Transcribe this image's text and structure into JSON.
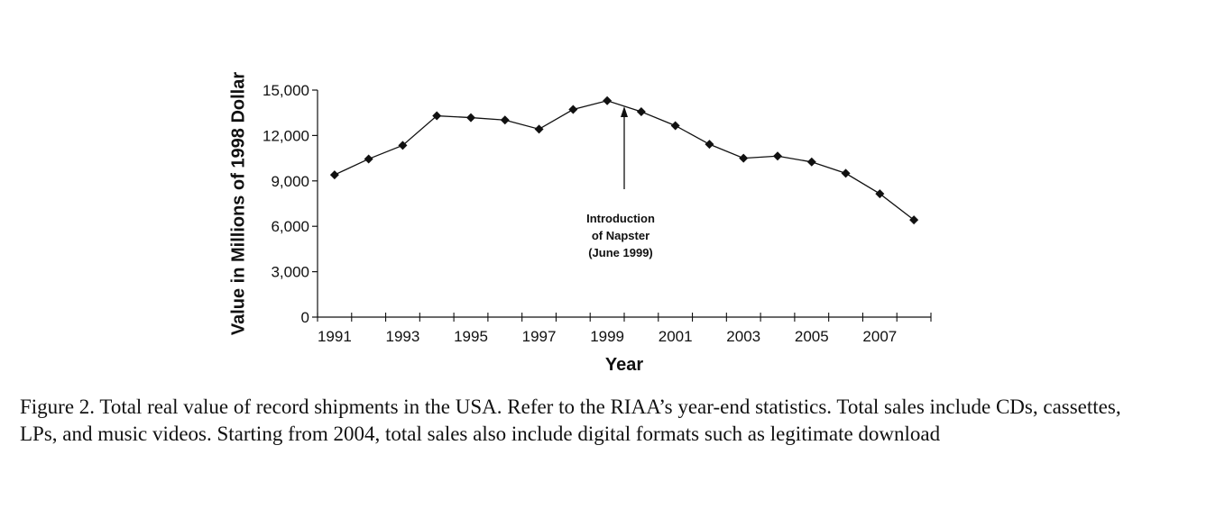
{
  "chart_data": {
    "type": "line",
    "title": "",
    "xlabel": "Year",
    "ylabel": "Value in Millions of 1998 Dollar",
    "x": [
      1991,
      1992,
      1993,
      1994,
      1995,
      1996,
      1997,
      1998,
      1999,
      2000,
      2001,
      2002,
      2003,
      2004,
      2005,
      2006,
      2007,
      2008
    ],
    "series": [
      {
        "name": "",
        "values": [
          9400,
          10450,
          11350,
          13300,
          13180,
          13020,
          12420,
          13720,
          14300,
          13570,
          12650,
          11420,
          10500,
          10640,
          10250,
          9500,
          8150,
          6420
        ]
      }
    ],
    "xlim": [
      1990.5,
      2008.5
    ],
    "ylim": [
      0,
      15000
    ],
    "x_ticks": [
      1991,
      1993,
      1995,
      1997,
      1999,
      2001,
      2003,
      2005,
      2007
    ],
    "y_ticks": [
      0,
      3000,
      6000,
      9000,
      12000,
      15000
    ],
    "y_tick_labels": [
      "0",
      "3,000",
      "6,000",
      "9,000",
      "12,000",
      "15,000"
    ],
    "grid": false,
    "marker": "diamond",
    "annotation": {
      "lines": [
        "Introduction",
        "of Napster",
        "(June 1999)"
      ],
      "x": 1999.5
    }
  },
  "caption": "Figure 2.  Total real value of record shipments in the USA. Refer to the RIAA’s year-end statistics. Total sales include CDs, cassettes, LPs, and music videos. Starting from 2004, total sales also include digital formats such as legitimate download"
}
